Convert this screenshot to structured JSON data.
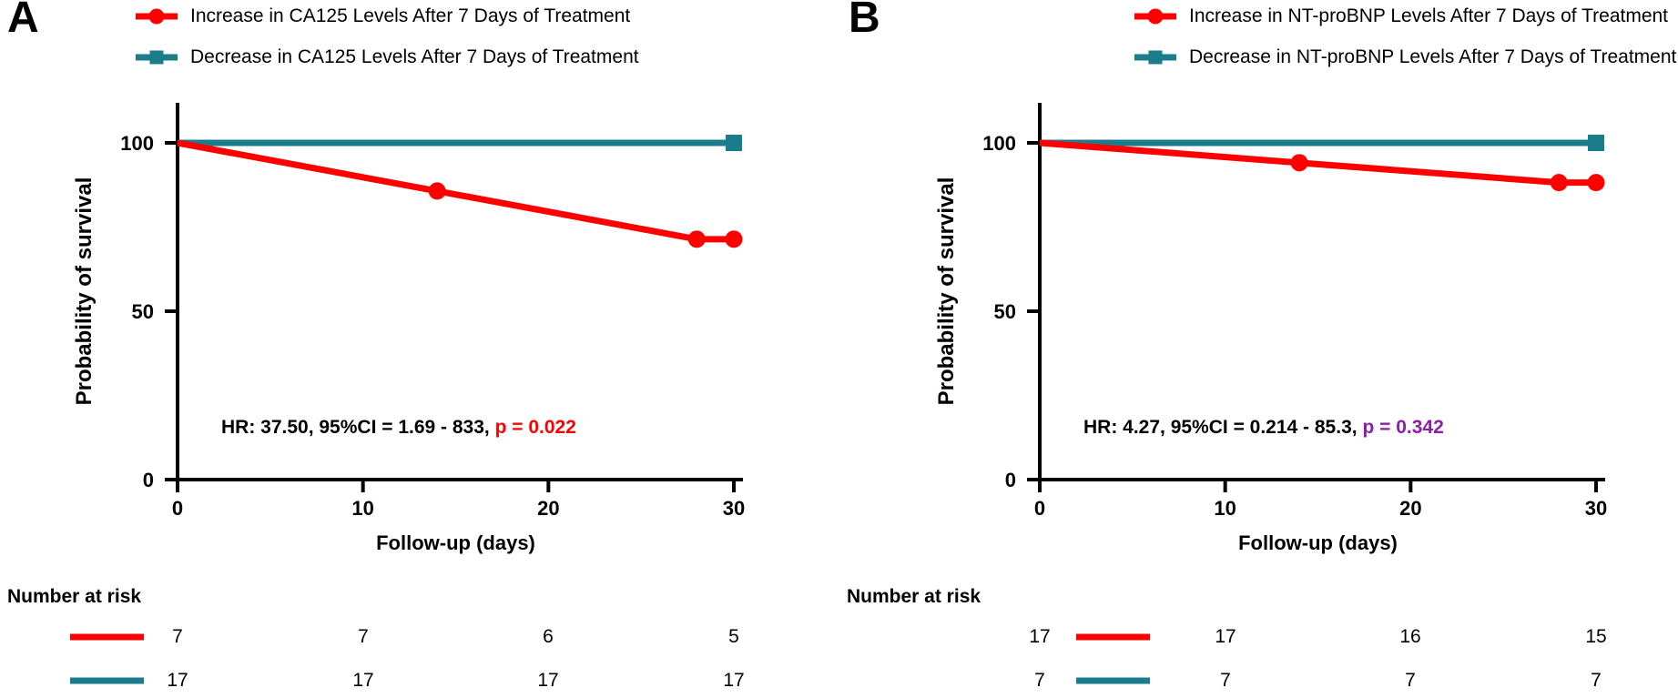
{
  "figure": {
    "background": "#FFFFFF",
    "text_color": "#000000",
    "axis_color": "#000000"
  },
  "panels": [
    {
      "label": "A",
      "legend": [
        {
          "label": "Increase in CA125 Levels After 7 Days of Treatment",
          "color": "#FF0000",
          "marker": "circle"
        },
        {
          "label": "Decrease in CA125 Levels After 7 Days of Treatment",
          "color": "#1B7C8C",
          "marker": "square"
        }
      ],
      "ylabel": "Probability of survival",
      "xlabel": "Follow-up (days)",
      "annotation": {
        "text": "HR: 37.50, 95%CI = 1.69 - 833,",
        "p_text": "p = 0.022",
        "p_color": "#FF0000"
      },
      "number_at_risk": {
        "title": "Number at risk",
        "rows": [
          {
            "series": "Increase in CA125 Levels After 7 Days of Treatment",
            "color": "#FF0000",
            "values": [
              "7",
              "7",
              "6",
              "5"
            ]
          },
          {
            "series": "Decrease in CA125 Levels After 7 Days of Treatment",
            "color": "#1B7C8C",
            "values": [
              "17",
              "17",
              "17",
              "17"
            ]
          }
        ]
      }
    },
    {
      "label": "B",
      "legend": [
        {
          "label": "Increase in NT-proBNP Levels After 7 Days of Treatment",
          "color": "#FF0000",
          "marker": "circle"
        },
        {
          "label": "Decrease in NT-proBNP Levels After 7 Days of Treatment",
          "color": "#1B7C8C",
          "marker": "square"
        }
      ],
      "ylabel": "Probability of survival",
      "xlabel": "Follow-up (days)",
      "annotation": {
        "text": "HR: 4.27, 95%CI = 0.214 - 85.3,",
        "p_text": "p = 0.342",
        "p_color": "#8B1FA8"
      },
      "number_at_risk": {
        "title": "Number at risk",
        "rows": [
          {
            "series": "Increase in NT-proBNP Levels After 7 Days of Treatment",
            "color": "#FF0000",
            "values": [
              "17",
              "17",
              "16",
              "15"
            ]
          },
          {
            "series": "Decrease in NT-proBNP Levels After 7 Days of Treatment",
            "color": "#1B7C8C",
            "values": [
              "7",
              "7",
              "7",
              "7"
            ]
          }
        ]
      }
    }
  ],
  "chart_data": [
    {
      "type": "line",
      "title": "A",
      "subtitle": "Kaplan-Meier survival by CA125 change after 7 days of treatment",
      "xlabel": "Follow-up (days)",
      "ylabel": "Probability of survival",
      "xlim": [
        0,
        30
      ],
      "ylim": [
        0,
        100
      ],
      "xticks": [
        0,
        10,
        20,
        30
      ],
      "yticks": [
        0,
        50,
        100
      ],
      "grid": false,
      "legend_position": "top",
      "series": [
        {
          "name": "Decrease in CA125 Levels After 7 Days of Treatment",
          "color": "#1B7C8C",
          "marker": "square",
          "x": [
            0,
            30
          ],
          "y": [
            100,
            100
          ],
          "marker_x": [
            30
          ],
          "marker_y": [
            100
          ]
        },
        {
          "name": "Increase in CA125 Levels After 7 Days of Treatment",
          "color": "#FF0000",
          "marker": "circle",
          "x": [
            0,
            14,
            28,
            30
          ],
          "y": [
            100,
            85.7,
            71.4,
            71.4
          ],
          "marker_x": [
            14,
            28,
            30
          ],
          "marker_y": [
            85.7,
            71.4,
            71.4
          ]
        }
      ],
      "annotation": "HR: 37.50, 95%CI = 1.69 - 833, p = 0.022",
      "number_at_risk": {
        "times": [
          0,
          10,
          20,
          30
        ],
        "rows": [
          {
            "name": "Increase",
            "values": [
              7,
              7,
              6,
              5
            ]
          },
          {
            "name": "Decrease",
            "values": [
              17,
              17,
              17,
              17
            ]
          }
        ]
      }
    },
    {
      "type": "line",
      "title": "B",
      "subtitle": "Kaplan-Meier survival by NT-proBNP change after 7 days of treatment",
      "xlabel": "Follow-up (days)",
      "ylabel": "Probability of survival",
      "xlim": [
        0,
        30
      ],
      "ylim": [
        0,
        100
      ],
      "xticks": [
        0,
        10,
        20,
        30
      ],
      "yticks": [
        0,
        50,
        100
      ],
      "grid": false,
      "legend_position": "top",
      "series": [
        {
          "name": "Decrease in NT-proBNP Levels After 7 Days of Treatment",
          "color": "#1B7C8C",
          "marker": "square",
          "x": [
            0,
            30
          ],
          "y": [
            100,
            100
          ],
          "marker_x": [
            30
          ],
          "marker_y": [
            100
          ]
        },
        {
          "name": "Increase in NT-proBNP Levels After 7 Days of Treatment",
          "color": "#FF0000",
          "marker": "circle",
          "x": [
            0,
            14,
            28,
            30
          ],
          "y": [
            100,
            94.1,
            88.2,
            88.2
          ],
          "marker_x": [
            14,
            28,
            30
          ],
          "marker_y": [
            94.1,
            88.2,
            88.2
          ]
        }
      ],
      "annotation": "HR: 4.27, 95%CI = 0.214 - 85.3, p = 0.342",
      "number_at_risk": {
        "times": [
          0,
          10,
          20,
          30
        ],
        "rows": [
          {
            "name": "Increase",
            "values": [
              17,
              17,
              16,
              15
            ]
          },
          {
            "name": "Decrease",
            "values": [
              7,
              7,
              7,
              7
            ]
          }
        ]
      }
    }
  ]
}
